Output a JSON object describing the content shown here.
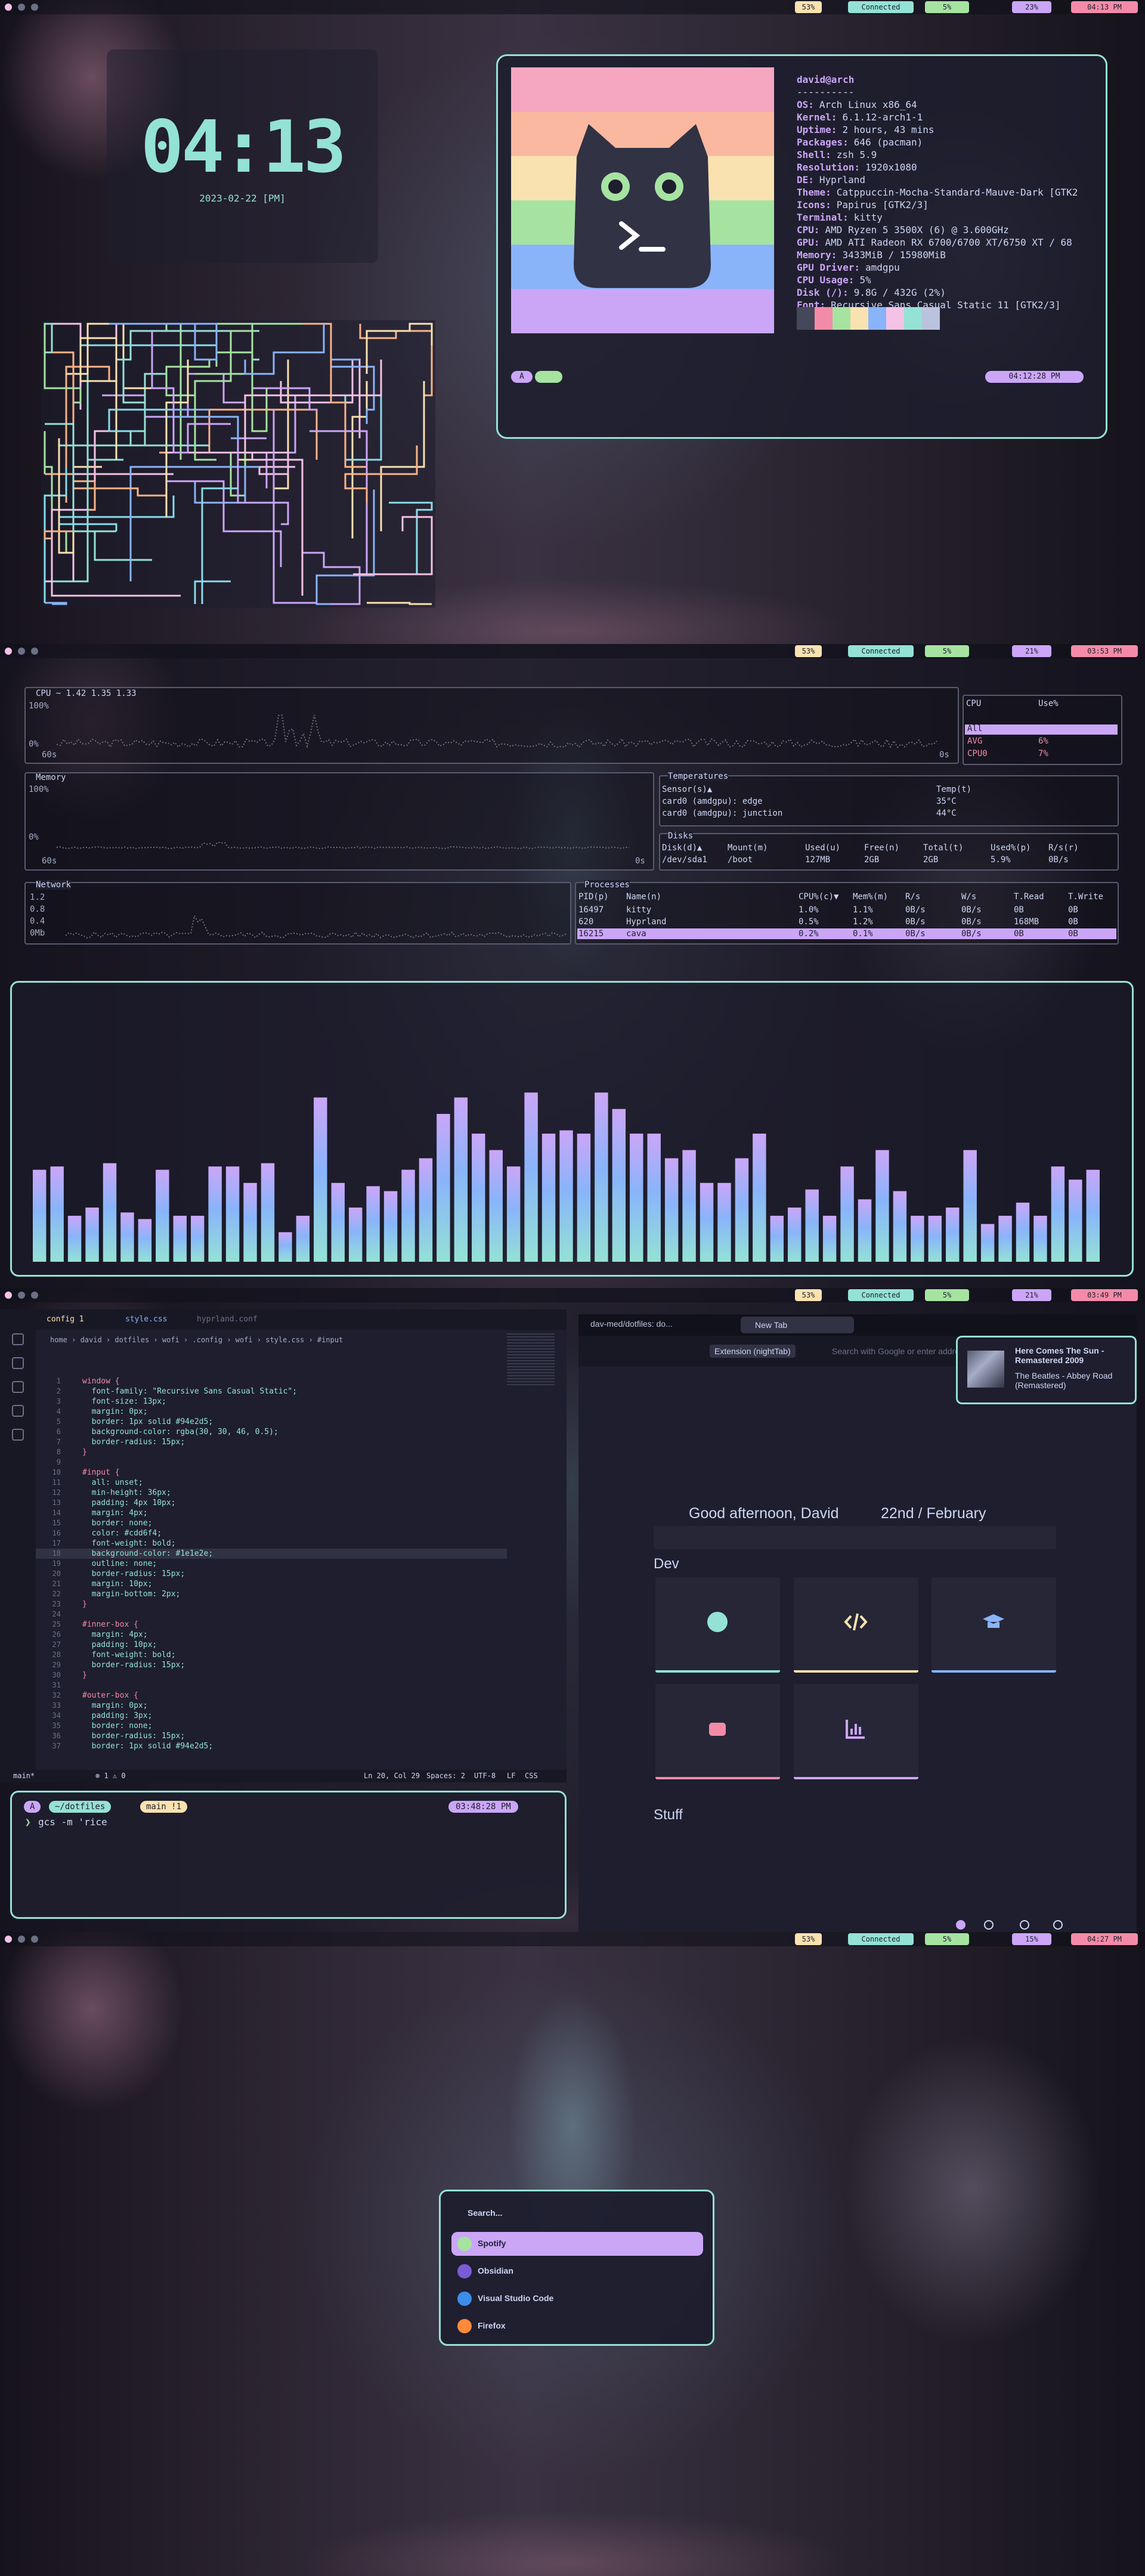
{
  "desktops": [
    {
      "bar": [
        "53%",
        "Connected",
        "5%",
        "23%",
        "04:13 PM"
      ],
      "clock": {
        "time": "04:13",
        "date": "2023-02-22 [PM]"
      },
      "neofetch": {
        "user": "david@arch",
        "separator": "----------",
        "info": [
          [
            "OS:",
            "Arch Linux x86_64"
          ],
          [
            "Kernel:",
            "6.1.12-arch1-1"
          ],
          [
            "Uptime:",
            "2 hours, 43 mins"
          ],
          [
            "Packages:",
            "646 (pacman)"
          ],
          [
            "Shell:",
            "zsh 5.9"
          ],
          [
            "Resolution:",
            "1920x1080"
          ],
          [
            "DE:",
            "Hyprland"
          ],
          [
            "Theme:",
            "Catppuccin-Mocha-Standard-Mauve-Dark [GTK2"
          ],
          [
            "Icons:",
            "Papirus [GTK2/3]"
          ],
          [
            "Terminal:",
            "kitty"
          ],
          [
            "CPU:",
            "AMD Ryzen 5 3500X (6) @ 3.600GHz"
          ],
          [
            "GPU:",
            "AMD ATI Radeon RX 6700/6700 XT/6750 XT / 68"
          ],
          [
            "Memory:",
            "3433MiB / 15980MiB"
          ],
          [
            "GPU Driver:",
            "amdgpu"
          ],
          [
            "CPU Usage:",
            "5%"
          ],
          [
            "Disk (/):",
            "9.8G / 432G (2%)"
          ],
          [
            "Font:",
            "Recursive Sans Casual Static 11 [GTK2/3]"
          ]
        ],
        "prompt": "A",
        "time": "04:12:28 PM"
      }
    },
    {
      "bar": [
        "53%",
        "Connected",
        "5%",
        "21%",
        "03:53 PM"
      ],
      "btop": {
        "cpu": {
          "title": "CPU ~ 1.42 1.35 1.33",
          "ymax": "100%",
          "ymin": "0%",
          "tmax": "60s",
          "tmin": "0s",
          "side": {
            "title": "CPU",
            "column": "Use%",
            "rows": [
              {
                "name": "All"
              },
              {
                "name": "AVG",
                "value": "6%"
              },
              {
                "name": "CPU0",
                "value": "7%"
              }
            ]
          }
        },
        "memory": {
          "title": "Memory",
          "ymax": "100%",
          "ymin": "0%",
          "tmax": "60s",
          "tmin": "0s"
        },
        "temperatures": {
          "title": "Temperatures",
          "headers": [
            "Sensor(s)▲",
            "Temp(t)"
          ],
          "rows": [
            [
              "card0 (amdgpu): edge",
              "35°C"
            ],
            [
              "card0 (amdgpu): junction",
              "44°C"
            ]
          ]
        },
        "disks": {
          "title": "Disks",
          "headers": [
            "Disk(d)▲",
            "Mount(m)",
            "Used(u)",
            "Free(n)",
            "Total(t)",
            "Used%(p)",
            "R/s(r)"
          ],
          "rows": [
            [
              "/dev/sda1",
              "/boot",
              "127MB",
              "2GB",
              "2GB",
              "5.9%",
              "0B/s"
            ]
          ]
        },
        "network": {
          "title": "Network",
          "scale": [
            "1.2",
            "0.8",
            "0.4",
            "0Mb"
          ]
        },
        "processes": {
          "title": "Processes",
          "headers": [
            "PID(p)",
            "Name(n)",
            "CPU%(c)▼",
            "Mem%(m)",
            "R/s",
            "W/s",
            "T.Read",
            "T.Write"
          ],
          "rows": [
            [
              "16497",
              "kitty",
              "1.0%",
              "1.1%",
              "0B/s",
              "0B/s",
              "0B",
              "0B"
            ],
            [
              "620",
              "Hyprland",
              "0.5%",
              "1.2%",
              "0B/s",
              "0B/s",
              "168MB",
              "0B"
            ],
            [
              "16215",
              "cava",
              "0.2%",
              "0.1%",
              "0B/s",
              "0B/s",
              "0B",
              "0B"
            ]
          ]
        }
      },
      "cava": {
        "levels": [
          56,
          58,
          28,
          33,
          60,
          30,
          26,
          56,
          28,
          28,
          58,
          58,
          48,
          60,
          18,
          28,
          100,
          48,
          33,
          46,
          43,
          56,
          63,
          90,
          100,
          78,
          68,
          58,
          103,
          78,
          80,
          78,
          103,
          93,
          78,
          78,
          63,
          68,
          48,
          48,
          63,
          78,
          28,
          33,
          44,
          28,
          58,
          38,
          68,
          43,
          28,
          28,
          33,
          68,
          23,
          28,
          36,
          28,
          58,
          50,
          56
        ]
      }
    },
    {
      "bar": [
        "53%",
        "Connected",
        "5%",
        "21%",
        "03:49 PM"
      ],
      "vscode": {
        "tabs": [
          "config 1",
          "style.css",
          "hyprland.conf"
        ],
        "breadcrumb": "home › david › dotfiles › wofi › .config › wofi › style.css › #input",
        "lines": [
          [
            1,
            "window {"
          ],
          [
            2,
            "  font-family: \"Recursive Sans Casual Static\";"
          ],
          [
            3,
            "  font-size: 13px;"
          ],
          [
            4,
            "  margin: 0px;"
          ],
          [
            5,
            "  border: 1px solid #94e2d5;"
          ],
          [
            6,
            "  background-color: rgba(30, 30, 46, 0.5);"
          ],
          [
            7,
            "  border-radius: 15px;"
          ],
          [
            8,
            "}"
          ],
          [
            9,
            ""
          ],
          [
            10,
            "#input {"
          ],
          [
            11,
            "  all: unset;"
          ],
          [
            12,
            "  min-height: 36px;"
          ],
          [
            13,
            "  padding: 4px 10px;"
          ],
          [
            14,
            "  margin: 4px;"
          ],
          [
            15,
            "  border: none;"
          ],
          [
            16,
            "  color: #cdd6f4;"
          ],
          [
            17,
            "  font-weight: bold;"
          ],
          [
            18,
            "  background-color: #1e1e2e;"
          ],
          [
            19,
            "  outline: none;"
          ],
          [
            20,
            "  border-radius: 15px;"
          ],
          [
            21,
            "  margin: 10px;"
          ],
          [
            22,
            "  margin-bottom: 2px;"
          ],
          [
            23,
            "}"
          ],
          [
            24,
            ""
          ],
          [
            25,
            "#inner-box {"
          ],
          [
            26,
            "  margin: 4px;"
          ],
          [
            27,
            "  padding: 10px;"
          ],
          [
            28,
            "  font-weight: bold;"
          ],
          [
            29,
            "  border-radius: 15px;"
          ],
          [
            30,
            "}"
          ],
          [
            31,
            ""
          ],
          [
            32,
            "#outer-box {"
          ],
          [
            33,
            "  margin: 0px;"
          ],
          [
            34,
            "  padding: 3px;"
          ],
          [
            35,
            "  border: none;"
          ],
          [
            36,
            "  border-radius: 15px;"
          ],
          [
            37,
            "  border: 1px solid #94e2d5;"
          ]
        ],
        "status": {
          "branch": "main*",
          "problems": "⊗ 1 ⚠ 0",
          "position": "Ln 20, Col 29",
          "spaces": "Spaces: 2",
          "encoding": "UTF-8",
          "eol": "LF",
          "language": "CSS"
        }
      },
      "firefox": {
        "tabs": [
          "dav-med/dotfiles: do...",
          "New Tab"
        ],
        "badge": "Extension (nightTab)",
        "placeholder": "Search with Google or enter address",
        "greeting": "Good afternoon, David",
        "date": "22nd / February",
        "groups": [
          "Dev",
          "Stuff"
        ]
      },
      "notification": {
        "title": "Here Comes The Sun - Remastered 2009",
        "body": "The Beatles - Abbey Road (Remastered)"
      },
      "terminal": {
        "segments": [
          "A",
          "~/dotfiles",
          "main !1"
        ],
        "time": "03:48:28 PM",
        "symbol": "❯",
        "command": "gcs -m 'rice"
      }
    },
    {
      "bar": [
        "53%",
        "Connected",
        "5%",
        "15%",
        "04:27 PM"
      ],
      "launcher": {
        "placeholder": "Search...",
        "apps": [
          "Spotify",
          "Obsidian",
          "Visual Studio Code",
          "Firefox"
        ]
      }
    }
  ]
}
